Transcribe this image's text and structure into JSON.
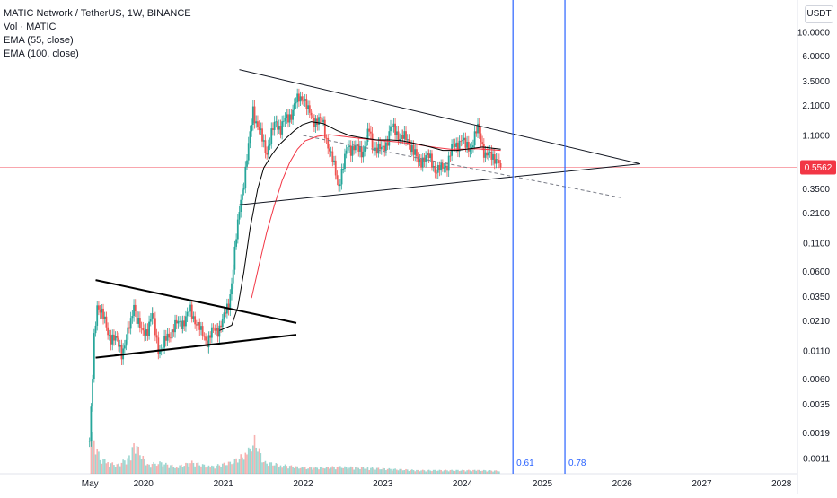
{
  "legend": {
    "title": "MATIC Network / TetherUS, 1W, BINANCE",
    "volume": "Vol · MATIC",
    "ema55": "EMA (55, close)",
    "ema100": "EMA (100, close)"
  },
  "currency": "USDT",
  "colors": {
    "up": "#26a69a",
    "down": "#ef5350",
    "ema55": "#000000",
    "ema100": "#f23645",
    "vertical": "#2962ff",
    "price_line": "#f23645"
  },
  "chart_data": {
    "type": "candlestick",
    "symbol": "MATIC Network / TetherUS",
    "interval": "1W",
    "exchange": "BINANCE",
    "y_scale": "log",
    "ylim": [
      0.0009,
      13
    ],
    "x_range": [
      "2019-04-22",
      "2028-07-01"
    ],
    "x_tick_labels": [
      "May",
      "2020",
      "2021",
      "2022",
      "2023",
      "2024",
      "2025",
      "2026",
      "2027",
      "2028"
    ],
    "x_ticks": [
      "2019-05-01",
      "2020-01-01",
      "2021-01-01",
      "2022-01-01",
      "2023-01-01",
      "2024-01-01",
      "2025-01-01",
      "2026-01-01",
      "2027-01-01",
      "2028-01-01"
    ],
    "y_ticks": [
      "10.0000",
      "6.0000",
      "3.5000",
      "2.1000",
      "1.1000",
      "0.5562",
      "0.3500",
      "0.2100",
      "0.1100",
      "0.0600",
      "0.0350",
      "0.0210",
      "0.0110",
      "0.0060",
      "0.0035",
      "0.0019",
      "0.0011"
    ],
    "current_price": 0.5562,
    "price_path": [
      [
        "2019-04-29",
        0.0016
      ],
      [
        "2019-05-06",
        0.003
      ],
      [
        "2019-05-13",
        0.006
      ],
      [
        "2019-05-20",
        0.014
      ],
      [
        "2019-06-03",
        0.03
      ],
      [
        "2019-06-17",
        0.028
      ],
      [
        "2019-07-01",
        0.022
      ],
      [
        "2019-07-22",
        0.016
      ],
      [
        "2019-08-12",
        0.015
      ],
      [
        "2019-09-02",
        0.013
      ],
      [
        "2019-09-23",
        0.011
      ],
      [
        "2019-10-14",
        0.014
      ],
      [
        "2019-11-04",
        0.02
      ],
      [
        "2019-11-18",
        0.032
      ],
      [
        "2019-12-02",
        0.022
      ],
      [
        "2019-12-23",
        0.016
      ],
      [
        "2020-01-20",
        0.018
      ],
      [
        "2020-02-10",
        0.023
      ],
      [
        "2020-03-09",
        0.012
      ],
      [
        "2020-03-23",
        0.011
      ],
      [
        "2020-04-20",
        0.015
      ],
      [
        "2020-05-18",
        0.018
      ],
      [
        "2020-06-15",
        0.02
      ],
      [
        "2020-07-13",
        0.022
      ],
      [
        "2020-08-03",
        0.026
      ],
      [
        "2020-08-24",
        0.022
      ],
      [
        "2020-09-21",
        0.016
      ],
      [
        "2020-10-19",
        0.014
      ],
      [
        "2020-11-09",
        0.016
      ],
      [
        "2020-12-07",
        0.018
      ],
      [
        "2021-01-04",
        0.022
      ],
      [
        "2021-01-25",
        0.03
      ],
      [
        "2021-02-08",
        0.05
      ],
      [
        "2021-02-22",
        0.09
      ],
      [
        "2021-03-08",
        0.16
      ],
      [
        "2021-03-22",
        0.3
      ],
      [
        "2021-04-05",
        0.42
      ],
      [
        "2021-04-19",
        0.65
      ],
      [
        "2021-05-03",
        1.1
      ],
      [
        "2021-05-17",
        2.0
      ],
      [
        "2021-05-31",
        1.5
      ],
      [
        "2021-06-14",
        1.2
      ],
      [
        "2021-06-28",
        1.0
      ],
      [
        "2021-07-19",
        0.8
      ],
      [
        "2021-08-09",
        1.1
      ],
      [
        "2021-08-30",
        1.5
      ],
      [
        "2021-09-20",
        1.3
      ],
      [
        "2021-10-11",
        1.5
      ],
      [
        "2021-11-08",
        1.8
      ],
      [
        "2021-11-29",
        2.2
      ],
      [
        "2021-12-20",
        2.5
      ],
      [
        "2022-01-03",
        2.6
      ],
      [
        "2022-01-24",
        1.8
      ],
      [
        "2022-02-14",
        1.6
      ],
      [
        "2022-03-14",
        1.5
      ],
      [
        "2022-04-04",
        1.4
      ],
      [
        "2022-05-09",
        0.7
      ],
      [
        "2022-06-13",
        0.4
      ],
      [
        "2022-07-04",
        0.55
      ],
      [
        "2022-07-25",
        0.9
      ],
      [
        "2022-08-15",
        0.85
      ],
      [
        "2022-09-05",
        0.8
      ],
      [
        "2022-10-03",
        0.82
      ],
      [
        "2022-10-31",
        1.2
      ],
      [
        "2022-11-14",
        0.9
      ],
      [
        "2022-12-05",
        0.85
      ],
      [
        "2022-12-26",
        0.78
      ],
      [
        "2023-01-16",
        0.95
      ],
      [
        "2023-02-06",
        1.3
      ],
      [
        "2023-02-27",
        1.2
      ],
      [
        "2023-03-20",
        1.1
      ],
      [
        "2023-04-17",
        1.0
      ],
      [
        "2023-05-15",
        0.88
      ],
      [
        "2023-06-12",
        0.6
      ],
      [
        "2023-07-10",
        0.72
      ],
      [
        "2023-08-07",
        0.65
      ],
      [
        "2023-08-28",
        0.55
      ],
      [
        "2023-09-25",
        0.52
      ],
      [
        "2023-10-23",
        0.62
      ],
      [
        "2023-11-13",
        0.82
      ],
      [
        "2023-12-04",
        0.9
      ],
      [
        "2023-12-25",
        1.05
      ],
      [
        "2024-01-15",
        0.85
      ],
      [
        "2024-02-12",
        0.9
      ],
      [
        "2024-03-11",
        1.25
      ],
      [
        "2024-03-25",
        1.05
      ],
      [
        "2024-04-15",
        0.72
      ],
      [
        "2024-05-06",
        0.7
      ],
      [
        "2024-05-27",
        0.72
      ],
      [
        "2024-06-10",
        0.65
      ],
      [
        "2024-06-24",
        0.5562
      ]
    ],
    "ema55": [
      [
        "2020-12-14",
        0.017
      ],
      [
        "2021-02-08",
        0.019
      ],
      [
        "2021-03-08",
        0.028
      ],
      [
        "2021-04-05",
        0.06
      ],
      [
        "2021-05-03",
        0.15
      ],
      [
        "2021-06-07",
        0.35
      ],
      [
        "2021-07-05",
        0.55
      ],
      [
        "2021-08-09",
        0.72
      ],
      [
        "2021-09-13",
        0.9
      ],
      [
        "2021-10-18",
        1.05
      ],
      [
        "2021-11-22",
        1.22
      ],
      [
        "2021-12-27",
        1.38
      ],
      [
        "2022-02-07",
        1.48
      ],
      [
        "2022-04-04",
        1.42
      ],
      [
        "2022-06-06",
        1.22
      ],
      [
        "2022-08-01",
        1.1
      ],
      [
        "2022-10-03",
        1.04
      ],
      [
        "2022-12-05",
        1.0
      ],
      [
        "2023-02-06",
        1.0
      ],
      [
        "2023-04-03",
        0.98
      ],
      [
        "2023-06-05",
        0.92
      ],
      [
        "2023-08-07",
        0.86
      ],
      [
        "2023-10-02",
        0.8
      ],
      [
        "2023-12-04",
        0.8
      ],
      [
        "2024-02-05",
        0.83
      ],
      [
        "2024-04-01",
        0.86
      ],
      [
        "2024-06-24",
        0.82
      ]
    ],
    "ema100": [
      [
        "2021-05-10",
        0.034
      ],
      [
        "2021-06-14",
        0.07
      ],
      [
        "2021-07-19",
        0.14
      ],
      [
        "2021-08-23",
        0.25
      ],
      [
        "2021-09-27",
        0.42
      ],
      [
        "2021-11-01",
        0.62
      ],
      [
        "2021-12-06",
        0.82
      ],
      [
        "2022-01-10",
        0.98
      ],
      [
        "2022-03-07",
        1.08
      ],
      [
        "2022-05-02",
        1.12
      ],
      [
        "2022-07-04",
        1.08
      ],
      [
        "2022-09-05",
        1.04
      ],
      [
        "2022-11-07",
        1.01
      ],
      [
        "2023-01-09",
        0.98
      ],
      [
        "2023-03-06",
        0.96
      ],
      [
        "2023-05-01",
        0.93
      ],
      [
        "2023-07-03",
        0.89
      ],
      [
        "2023-09-04",
        0.85
      ],
      [
        "2023-11-06",
        0.82
      ],
      [
        "2024-01-08",
        0.82
      ],
      [
        "2024-03-04",
        0.83
      ],
      [
        "2024-06-24",
        0.8
      ]
    ],
    "drawings": {
      "triangle_2019": [
        [
          [
            "2019-05-27",
            0.05
          ],
          [
            "2021-12-01",
            0.02
          ]
        ],
        [
          [
            "2019-05-27",
            0.0095
          ],
          [
            "2021-12-01",
            0.0155
          ]
        ]
      ],
      "triangle_2021": [
        [
          [
            "2021-03-15",
            4.5
          ],
          [
            "2026-03-25",
            0.6
          ]
        ],
        [
          [
            "2021-03-15",
            0.25
          ],
          [
            "2026-03-25",
            0.6
          ]
        ]
      ],
      "dashed_support": [
        [
          "2022-01-01",
          1.1
        ],
        [
          "2026-01-01",
          0.29
        ]
      ],
      "vertical_lines": [
        {
          "date": "2024-08-19",
          "label": "0.61"
        },
        {
          "date": "2025-04-14",
          "label": "0.78"
        }
      ]
    },
    "volume": {
      "series": "Vol · MATIC",
      "values": [
        [
          "2019-05-06",
          0.9
        ],
        [
          "2019-05-20",
          0.55
        ],
        [
          "2019-06-03",
          0.4
        ],
        [
          "2019-06-24",
          0.25
        ],
        [
          "2019-07-22",
          0.2
        ],
        [
          "2019-09-02",
          0.15
        ],
        [
          "2019-11-04",
          0.3
        ],
        [
          "2019-11-18",
          0.55
        ],
        [
          "2020-01-20",
          0.15
        ],
        [
          "2020-03-09",
          0.2
        ],
        [
          "2020-06-01",
          0.12
        ],
        [
          "2020-08-10",
          0.2
        ],
        [
          "2020-11-02",
          0.12
        ],
        [
          "2021-02-08",
          0.2
        ],
        [
          "2021-03-22",
          0.3
        ],
        [
          "2021-04-19",
          0.35
        ],
        [
          "2021-05-10",
          0.5
        ],
        [
          "2021-05-24",
          0.6
        ],
        [
          "2021-07-05",
          0.2
        ],
        [
          "2021-09-27",
          0.15
        ],
        [
          "2022-01-10",
          0.1
        ],
        [
          "2022-06-13",
          0.12
        ],
        [
          "2022-10-31",
          0.1
        ],
        [
          "2023-06-12",
          0.06
        ],
        [
          "2024-03-11",
          0.06
        ],
        [
          "2024-06-24",
          0.05
        ]
      ]
    }
  }
}
